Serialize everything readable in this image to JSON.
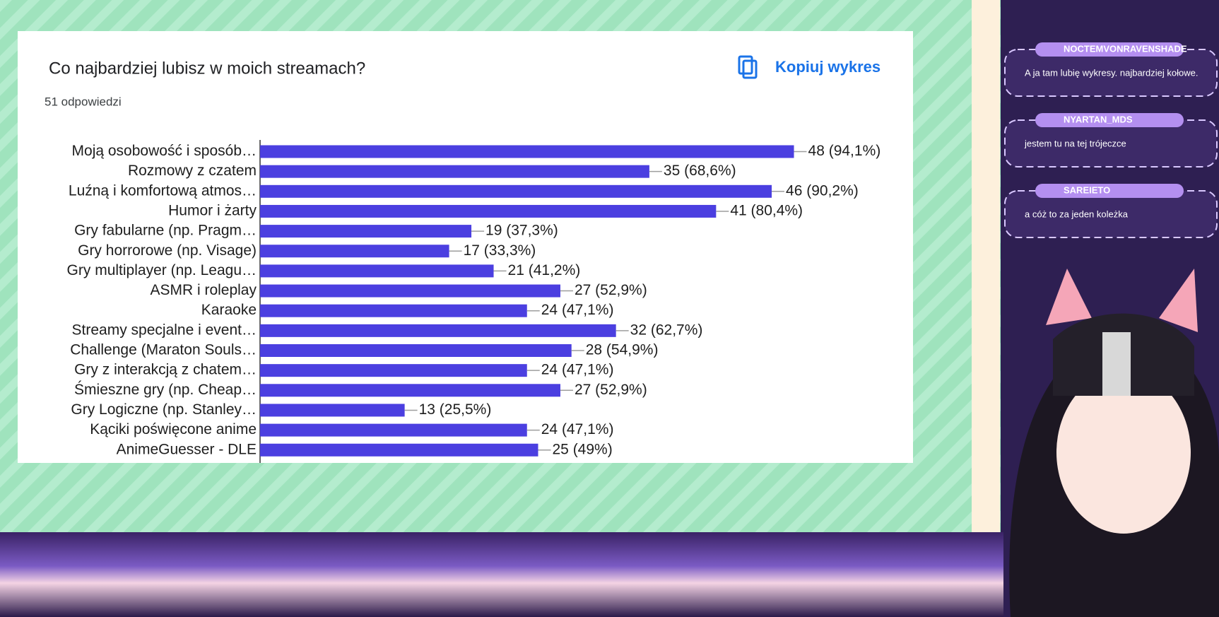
{
  "chart_data": {
    "type": "bar",
    "orientation": "horizontal",
    "title": "Co najbardziej lubisz w moich streamach?",
    "subtitle": "51 odpowiedzi",
    "copy_button": "Kopiuj wykres",
    "categories": [
      "Moją osobowość i sposób…",
      "Rozmowy z czatem",
      "Luźną i komfortową atmos…",
      "Humor i żarty",
      "Gry fabularne (np. Pragm…",
      "Gry horrorowe (np. Visage)",
      "Gry multiplayer (np. Leagu…",
      "ASMR i roleplay",
      "Karaoke",
      "Streamy specjalne i event…",
      "Challenge (Maraton Souls…",
      "Gry z interakcją z chatem…",
      "Śmieszne gry (np. Cheap…",
      "Gry Logiczne (np. Stanley…",
      "Kąciki poświęcone anime",
      "AnimeGuesser - DLE"
    ],
    "values": [
      48,
      35,
      46,
      41,
      19,
      17,
      21,
      27,
      24,
      32,
      28,
      24,
      27,
      13,
      24,
      25
    ],
    "value_labels": [
      "48 (94,1%)",
      "35 (68,6%)",
      "46 (90,2%)",
      "41 (80,4%)",
      "19 (37,3%)",
      "17 (33,3%)",
      "21 (41,2%)",
      "27 (52,9%)",
      "24 (47,1%)",
      "32 (62,7%)",
      "28 (54,9%)",
      "24 (47,1%)",
      "27 (52,9%)",
      "13 (25,5%)",
      "24 (47,1%)",
      "25 (49%)"
    ],
    "color": "#4b3fe0",
    "xlim": [
      0,
      50
    ]
  },
  "chat": [
    {
      "name": "NOCTEMVONRAVENSHADE",
      "message": "A ja tam lubię wykresy. najbardziej kołowe."
    },
    {
      "name": "NYARTAN_MDS",
      "message": "jestem tu na tej trójeczce"
    },
    {
      "name": "SAREIETO",
      "message": "a cóż to za jeden koleżka"
    }
  ]
}
